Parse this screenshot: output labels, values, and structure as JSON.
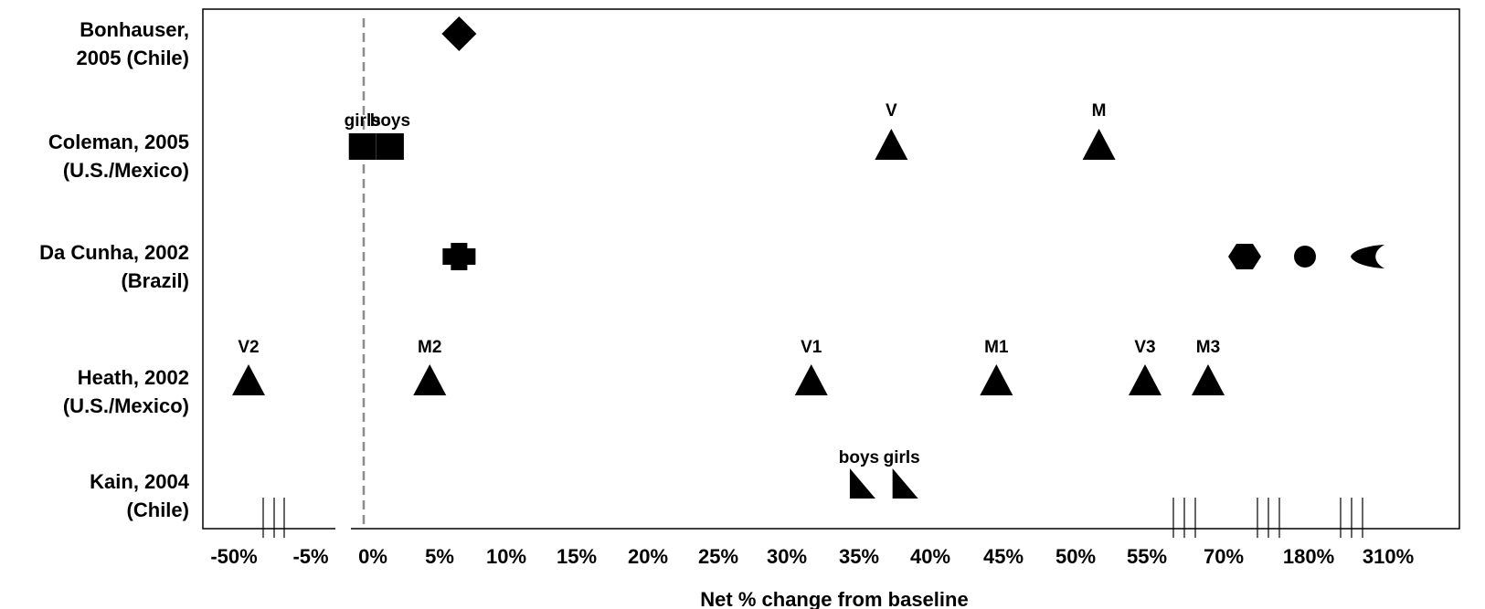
{
  "chart_data": {
    "type": "scatter",
    "title": "",
    "xlabel": "Net % change from baseline",
    "ylabel": "",
    "grid": false,
    "x_ticks": [
      "-50%",
      "-5%",
      "0%",
      "5%",
      "10%",
      "15%",
      "20%",
      "25%",
      "30%",
      "35%",
      "40%",
      "45%",
      "50%",
      "55%",
      "70%",
      "180%",
      "310%"
    ],
    "reference_line": {
      "x": "0%",
      "style": "dashed"
    },
    "studies": [
      {
        "label": [
          "Bonhauser,",
          "2005 (Chile)"
        ]
      },
      {
        "label": [
          "Coleman, 2005",
          "(U.S./Mexico)"
        ]
      },
      {
        "label": [
          "Da Cunha, 2002",
          "(Brazil)"
        ]
      },
      {
        "label": [
          "Heath, 2002",
          "(U.S./Mexico)"
        ]
      },
      {
        "label": [
          "Kain, 2004",
          "(Chile)"
        ]
      }
    ],
    "points": [
      {
        "study": 0,
        "x": 6.5,
        "shape": "diamond",
        "label": ""
      },
      {
        "study": 1,
        "x": -0.5,
        "shape": "square",
        "label": "girls"
      },
      {
        "study": 1,
        "x": 1.8,
        "shape": "square",
        "label": "boys"
      },
      {
        "study": 1,
        "x": 36,
        "shape": "triangle",
        "label": "V"
      },
      {
        "study": 1,
        "x": 51,
        "shape": "triangle",
        "label": "M"
      },
      {
        "study": 2,
        "x": 6.5,
        "shape": "cross",
        "label": ""
      },
      {
        "study": 2,
        "x": 73,
        "shape": "octagon",
        "label": ""
      },
      {
        "study": 2,
        "x": 210,
        "shape": "circle",
        "label": ""
      },
      {
        "study": 2,
        "x": 310,
        "shape": "crescent",
        "label": ""
      },
      {
        "study": 3,
        "x": -50,
        "shape": "triangle",
        "label": "V2"
      },
      {
        "study": 3,
        "x": 4.5,
        "shape": "triangle",
        "label": "M2"
      },
      {
        "study": 3,
        "x": 30.5,
        "shape": "triangle",
        "label": "V1"
      },
      {
        "study": 3,
        "x": 43.5,
        "shape": "triangle",
        "label": "M1"
      },
      {
        "study": 3,
        "x": 55,
        "shape": "triangle",
        "label": "V3"
      },
      {
        "study": 3,
        "x": 65,
        "shape": "triangle",
        "label": "M3"
      },
      {
        "study": 4,
        "x": 34,
        "shape": "right-triangle",
        "label": "boys"
      },
      {
        "study": 4,
        "x": 37,
        "shape": "right-triangle",
        "label": "girls"
      }
    ]
  }
}
